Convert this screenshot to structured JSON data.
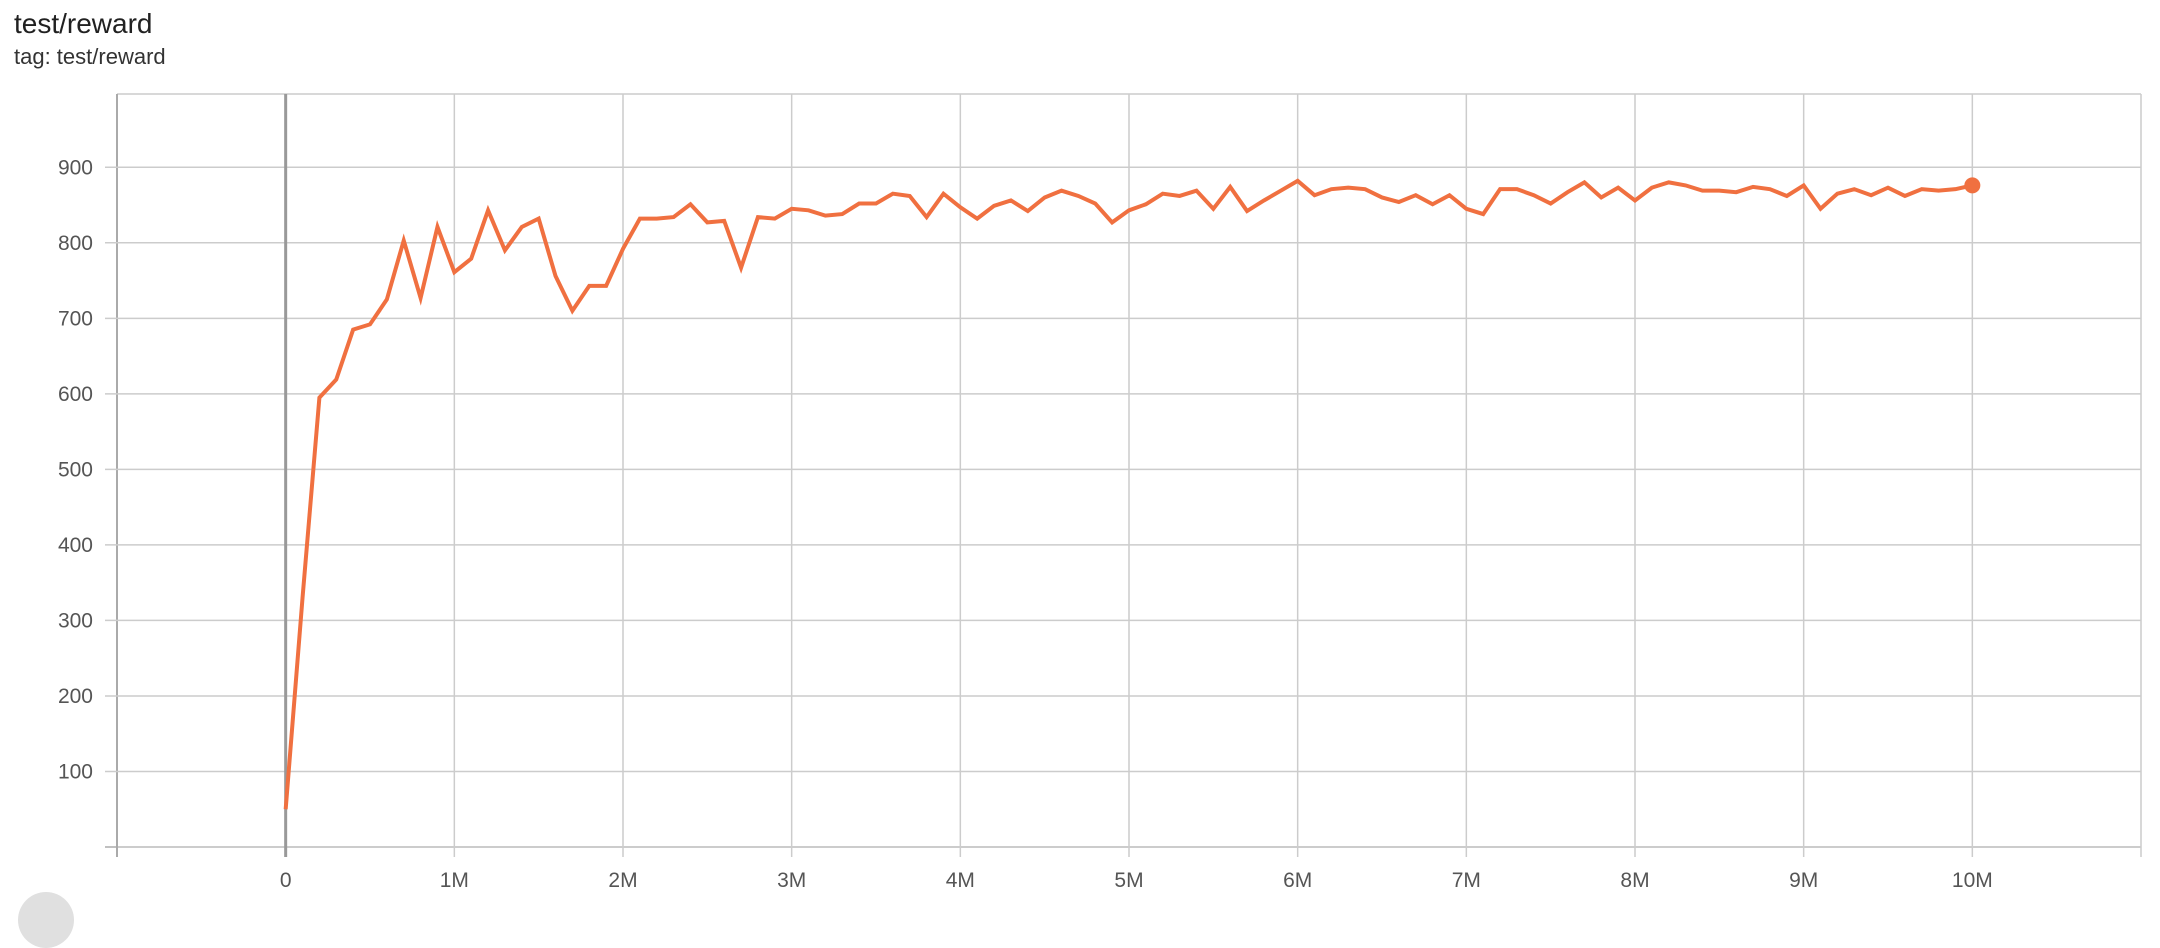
{
  "header": {
    "title": "test/reward",
    "tag": "tag: test/reward"
  },
  "chart_data": {
    "type": "line",
    "title": "test/reward",
    "xlabel": "",
    "ylabel": "",
    "xlim": [
      -1000000,
      11000000
    ],
    "ylim": [
      0,
      997
    ],
    "grid": true,
    "x_ticks": [
      0,
      1000000,
      2000000,
      3000000,
      4000000,
      5000000,
      6000000,
      7000000,
      8000000,
      9000000,
      10000000
    ],
    "x_tick_labels": [
      "0",
      "1M",
      "2M",
      "3M",
      "4M",
      "5M",
      "6M",
      "7M",
      "8M",
      "9M",
      "10M"
    ],
    "y_ticks": [
      100,
      200,
      300,
      400,
      500,
      600,
      700,
      800,
      900
    ],
    "y_tick_labels": [
      "100",
      "200",
      "300",
      "400",
      "500",
      "600",
      "700",
      "800",
      "900"
    ],
    "line_color": "#f07040",
    "series": [
      {
        "x_step": 100000,
        "values": [
          50,
          330,
          595,
          619,
          685,
          692,
          725,
          803,
          727,
          821,
          761,
          779,
          843,
          790,
          821,
          832,
          756,
          710,
          743,
          743,
          792,
          832,
          832,
          834,
          851,
          827,
          829,
          767,
          834,
          832,
          845,
          843,
          836,
          838,
          852,
          852,
          865,
          862,
          834,
          865,
          847,
          832,
          849,
          856,
          842,
          860,
          869,
          862,
          852,
          827,
          843,
          851,
          865,
          862,
          869,
          845,
          874,
          842,
          856,
          869,
          882,
          863,
          871,
          873,
          871,
          860,
          854,
          863,
          851,
          863,
          845,
          838,
          871,
          871,
          863,
          852,
          867,
          880,
          860,
          873,
          856,
          873,
          880,
          876,
          869,
          869,
          867,
          874,
          871,
          862,
          876,
          845,
          865,
          871,
          863,
          873,
          862,
          871,
          869,
          871,
          876
        ]
      }
    ]
  }
}
